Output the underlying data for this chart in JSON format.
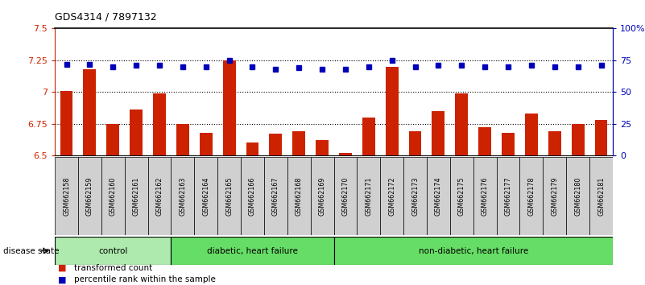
{
  "title": "GDS4314 / 7897132",
  "samples": [
    "GSM662158",
    "GSM662159",
    "GSM662160",
    "GSM662161",
    "GSM662162",
    "GSM662163",
    "GSM662164",
    "GSM662165",
    "GSM662166",
    "GSM662167",
    "GSM662168",
    "GSM662169",
    "GSM662170",
    "GSM662171",
    "GSM662172",
    "GSM662173",
    "GSM662174",
    "GSM662175",
    "GSM662176",
    "GSM662177",
    "GSM662178",
    "GSM662179",
    "GSM662180",
    "GSM662181"
  ],
  "bar_values": [
    7.01,
    7.18,
    6.75,
    6.86,
    6.99,
    6.75,
    6.68,
    7.25,
    6.6,
    6.67,
    6.69,
    6.62,
    6.52,
    6.8,
    7.2,
    6.69,
    6.85,
    6.99,
    6.72,
    6.68,
    6.83,
    6.69,
    6.75,
    6.78
  ],
  "dot_values": [
    72,
    72,
    70,
    71,
    71,
    70,
    70,
    75,
    70,
    68,
    69,
    68,
    68,
    70,
    75,
    70,
    71,
    71,
    70,
    70,
    71,
    70,
    70,
    71
  ],
  "groups": [
    {
      "label": "control",
      "start": 0,
      "end": 5,
      "color": "#aeeaae"
    },
    {
      "label": "diabetic, heart failure",
      "start": 5,
      "end": 12,
      "color": "#66dd66"
    },
    {
      "label": "non-diabetic, heart failure",
      "start": 12,
      "end": 24,
      "color": "#66dd66"
    }
  ],
  "ylim_left": [
    6.5,
    7.5
  ],
  "ylim_right": [
    0,
    100
  ],
  "yticks_left": [
    6.5,
    6.75,
    7.0,
    7.25,
    7.5
  ],
  "ytick_labels_left": [
    "6.5",
    "6.75",
    "7",
    "7.25",
    "7.5"
  ],
  "yticks_right": [
    0,
    25,
    50,
    75,
    100
  ],
  "ytick_labels_right": [
    "0",
    "25",
    "50",
    "75",
    "100%"
  ],
  "bar_color": "#cc2200",
  "dot_color": "#0000bb",
  "background_color": "#ffffff",
  "plot_bg_color": "#ffffff",
  "tick_box_color": "#d0d0d0",
  "disease_state_label": "disease state",
  "legend_bar_label": "transformed count",
  "legend_dot_label": "percentile rank within the sample"
}
